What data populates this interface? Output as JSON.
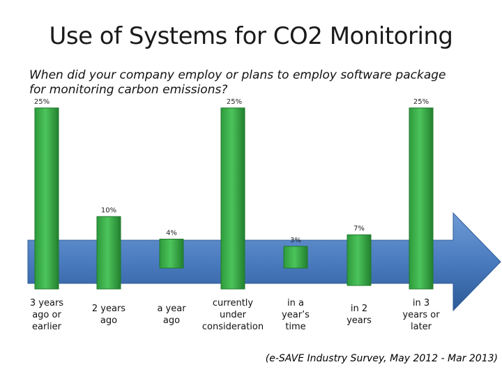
{
  "title": "Use of Systems for CO2 Monitoring",
  "question": "When did your company employ or plans to employ software package for monitoring carbon emissions?",
  "source": "(e-SAVE Industry Survey, May 2012 - Mar 2013)",
  "colors": {
    "bar": "#3ab14a",
    "bar_dark": "#1f7a2b",
    "arrow": "#4a7bbf",
    "arrow_dark": "#2d5a96"
  },
  "chart_data": {
    "type": "bar",
    "title": "Use of Systems for CO2 Monitoring",
    "categories": [
      " 3 years\nago or\nearlier",
      "2 years\nago",
      "a year\nago",
      "currently\nunder\nconsideration",
      "in a\nyear’s\ntime",
      "in 2\nyears",
      "in 3\nyears or\nlater"
    ],
    "values": [
      25,
      10,
      4,
      25,
      3,
      7,
      25
    ],
    "value_labels": [
      "25%",
      "10%",
      "4%",
      "25%",
      "3%",
      "7%",
      "25%"
    ],
    "xlabel": "",
    "ylabel": "",
    "ylim": [
      0,
      25
    ]
  }
}
